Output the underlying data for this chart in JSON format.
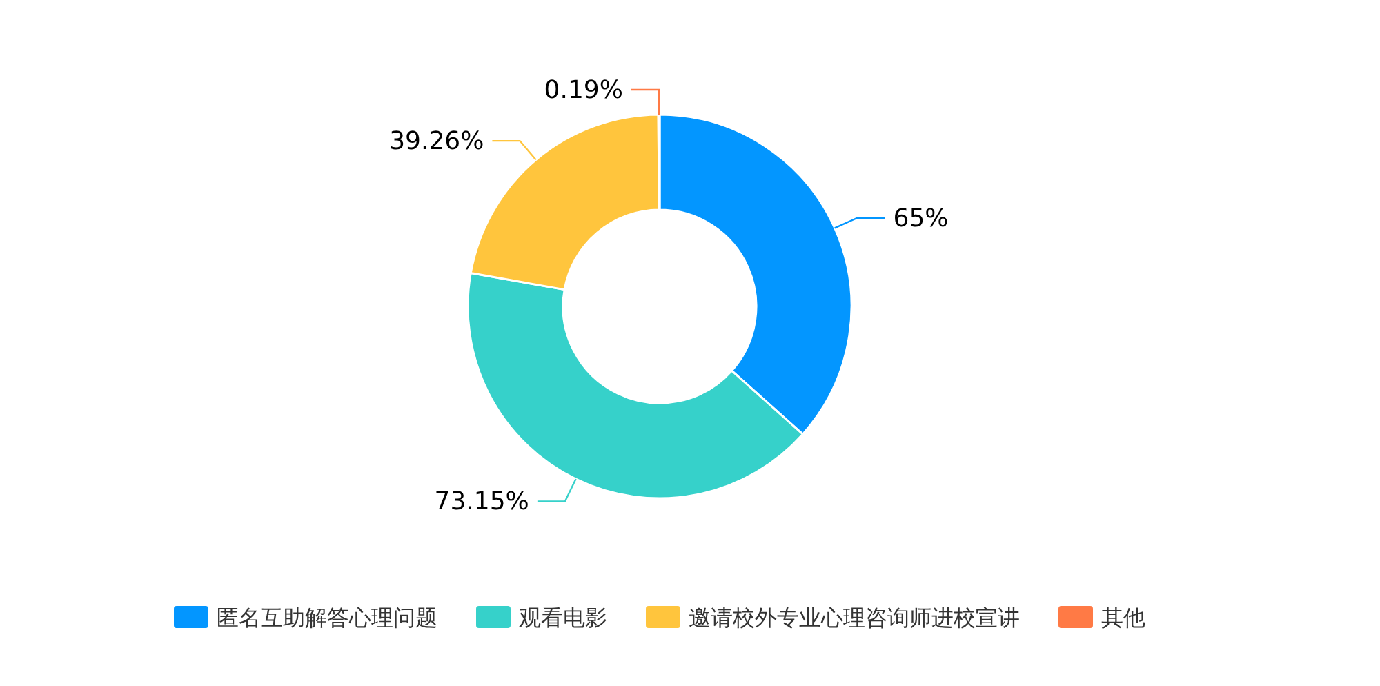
{
  "chart_data": {
    "type": "donut",
    "categories": [
      "匿名互助解答心理问题",
      "观看电影",
      "邀请校外专业心理咨询师进校宣讲",
      "其他"
    ],
    "values": [
      65,
      73.15,
      39.26,
      0.19
    ],
    "value_labels": [
      "65%",
      "73.15%",
      "39.26%",
      "0.19%"
    ],
    "colors": [
      "#0396ff",
      "#36d1ca",
      "#ffc53d",
      "#ff7a45"
    ],
    "legend": "bottom"
  }
}
